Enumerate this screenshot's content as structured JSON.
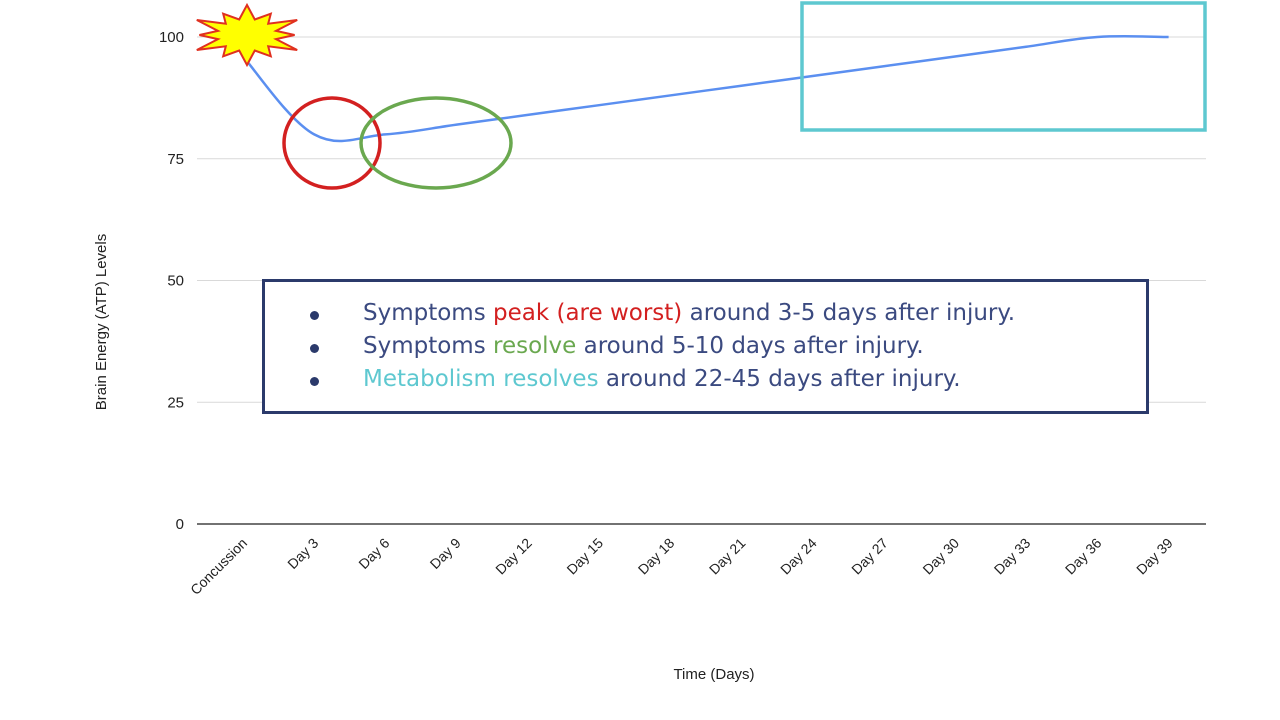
{
  "chart_data": {
    "type": "line",
    "title": "",
    "xlabel": "Time (Days)",
    "ylabel": "Brain Energy (ATP) Levels",
    "ylim": [
      0,
      100
    ],
    "yticks": [
      0,
      25,
      50,
      75,
      100
    ],
    "categories": [
      "Concussion",
      "Day 3",
      "Day 6",
      "Day 9",
      "Day 12",
      "Day 15",
      "Day 18",
      "Day 21",
      "Day 24",
      "Day 27",
      "Day 30",
      "Day 33",
      "Day 36",
      "Day 39"
    ],
    "grid": true,
    "line_color": "#5b8ff0",
    "series": [
      {
        "values": [
          96,
          80,
          80,
          82,
          84,
          86,
          88,
          90,
          92,
          94,
          96,
          98,
          100,
          100
        ]
      }
    ]
  },
  "annotations": {
    "colors": {
      "peak": "#d32020",
      "resolve": "#6aa84f",
      "metabolism": "#5ec8d0",
      "box": "#2b3a6b",
      "text": "#3b4a80",
      "burst_fill": "#ffff00",
      "burst_stroke": "#e03020"
    },
    "burst_icon": "explosion-icon",
    "bullets": [
      {
        "before": "Symptoms ",
        "highlight": "peak (are worst)",
        "highlight_color": "peak",
        "after": " around 3-5 days after injury."
      },
      {
        "before": "Symptoms ",
        "highlight": "resolve",
        "highlight_color": "resolve",
        "after": " around 5-10 days after injury."
      },
      {
        "before": "",
        "highlight": "Metabolism resolves",
        "highlight_color": "metabolism",
        "after": " around 22-45 days after injury."
      }
    ]
  }
}
